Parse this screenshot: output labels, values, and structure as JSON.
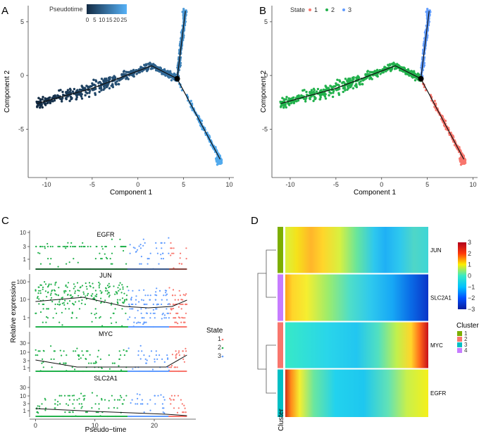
{
  "panels": {
    "a": "A",
    "b": "B",
    "c": "C",
    "d": "D"
  },
  "colors": {
    "state1": "#f8766d",
    "state2": "#22b14c",
    "state3": "#619cff",
    "pt_low": "#132b43",
    "pt_high": "#56b1f7"
  },
  "chart_data": [
    {
      "id": "A",
      "type": "scatter",
      "xlabel": "Component 1",
      "ylabel": "Component 2",
      "xlim": [
        -12,
        10.5
      ],
      "ylim": [
        -9.5,
        6.5
      ],
      "xticks": [
        -10,
        -5,
        0,
        5,
        10
      ],
      "xtick_labels": [
        "-10",
        "-5",
        "0",
        "5",
        "10"
      ],
      "yticks": [
        5,
        0,
        -5
      ],
      "ytick_labels": [
        "5",
        "0",
        "-5"
      ],
      "legend": {
        "title": "Pseudotime",
        "ticks": [
          "0",
          "5",
          "10",
          "15",
          "20",
          "25"
        ],
        "range": [
          0,
          27
        ]
      },
      "trajectory": [
        [
          -11,
          -2.6
        ],
        [
          -5,
          -1.2
        ],
        [
          1.5,
          0.9
        ],
        [
          4.3,
          -0.3
        ],
        [
          5.2,
          6.0
        ],
        [
          4.3,
          -0.3
        ],
        [
          9,
          -7.8
        ]
      ],
      "branch_point": [
        4.3,
        -0.3
      ]
    },
    {
      "id": "B",
      "type": "scatter",
      "xlabel": "Component 1",
      "ylabel": "Component 2",
      "xlim": [
        -12,
        10.5
      ],
      "ylim": [
        -9.5,
        6.5
      ],
      "xticks": [
        -10,
        -5,
        0,
        5,
        10
      ],
      "xtick_labels": [
        "-10",
        "-5",
        "0",
        "5",
        "10"
      ],
      "yticks": [
        5,
        0,
        -5
      ],
      "ytick_labels": [
        "5",
        "0",
        "-5"
      ],
      "legend": {
        "title": "State",
        "entries": [
          "1",
          "2",
          "3"
        ]
      },
      "states": {
        "1": "lower-right branch",
        "2": "left branch",
        "3": "upper branch"
      }
    },
    {
      "id": "C",
      "type": "scatter",
      "xlabel": "Pseudo−time",
      "ylabel": "Relative expression",
      "xlim": [
        -1,
        27
      ],
      "xticks": [
        0,
        10,
        20
      ],
      "xtick_labels": [
        "0",
        "10",
        "20"
      ],
      "legend": {
        "title": "State",
        "entries": [
          "1",
          "2",
          "3"
        ]
      },
      "genes": [
        {
          "name": "EGFR",
          "yticks": [
            "10",
            "3",
            "1"
          ]
        },
        {
          "name": "JUN",
          "yticks": [
            "100",
            "10",
            "1"
          ]
        },
        {
          "name": "MYC",
          "yticks": [
            "30",
            "10",
            "3",
            "1"
          ]
        },
        {
          "name": "SLC2A1",
          "yticks": [
            "30",
            "10",
            "3",
            "1"
          ]
        }
      ],
      "state_ranges": {
        "2": [
          0,
          15.5
        ],
        "3": [
          15.5,
          22.5
        ],
        "1": [
          22.5,
          25.5
        ]
      }
    },
    {
      "id": "D",
      "type": "heatmap",
      "rows": [
        "JUN",
        "SLC2A1",
        "MYC",
        "EGFR"
      ],
      "column_annotation": "Cluster",
      "scale": {
        "ticks": [
          "3",
          "2",
          "1",
          "0",
          "−1",
          "−2",
          "−3"
        ],
        "range": [
          -3,
          3
        ]
      },
      "cluster_legend": {
        "title": "Cluster",
        "entries": [
          "1",
          "2",
          "3",
          "4"
        ],
        "colors": [
          "#7cae00",
          "#f8766d",
          "#00bfc4",
          "#c77cff"
        ]
      },
      "row_clusters": [
        "1",
        "4",
        "2",
        "3"
      ]
    }
  ]
}
